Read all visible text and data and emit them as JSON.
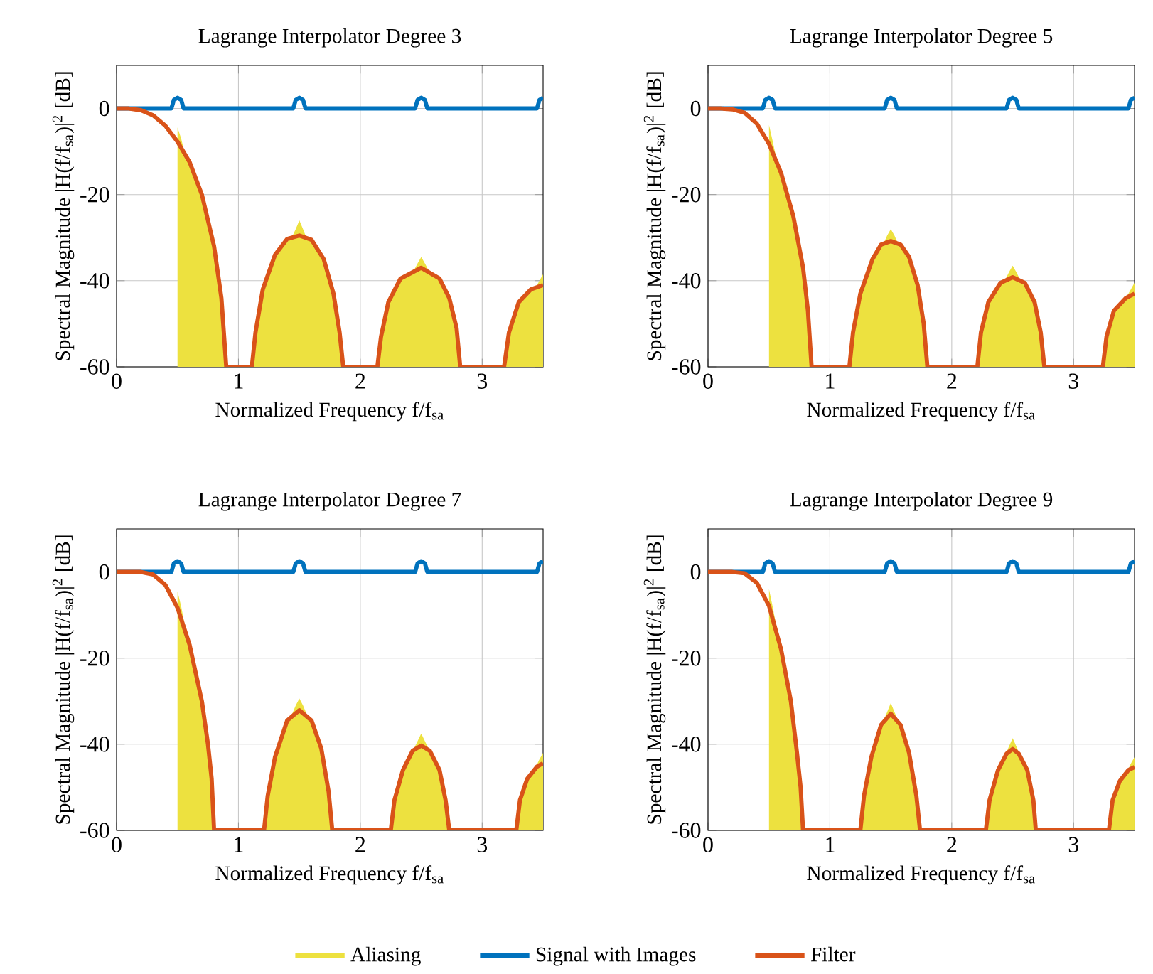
{
  "chart_data": [
    {
      "type": "line",
      "title": "Lagrange Interpolator Degree 3",
      "xlabel": "Normalized Frequency f/f$_{sa}$",
      "ylabel": "Spectral Magnitude |H(f/f$_{sa}$)|$^{2}$ [dB]",
      "xlim": [
        0,
        3.5
      ],
      "ylim": [
        -60,
        10
      ],
      "xticks": [
        0,
        1,
        2,
        3
      ],
      "yticks": [
        -60,
        -40,
        -20,
        0
      ],
      "grid": true,
      "series": [
        {
          "type": "area",
          "color": "#ede13f",
          "x": [
            0.5,
            0.5,
            0.53,
            0.56,
            0.6,
            0.7,
            0.8,
            0.86,
            0.9,
            1.11,
            1.14,
            1.2,
            1.3,
            1.44,
            1.47,
            1.5,
            1.53,
            1.56,
            1.6,
            1.7,
            1.78,
            1.83,
            1.86,
            2.14,
            2.17,
            2.23,
            2.33,
            2.44,
            2.47,
            2.5,
            2.53,
            2.56,
            2.65,
            2.73,
            2.79,
            2.82,
            3.18,
            3.22,
            3.3,
            3.4,
            3.44,
            3.47,
            3.5,
            3.5
          ],
          "values": [
            -60,
            -4.4,
            -7,
            -10.5,
            -12.5,
            -20,
            -32,
            -44,
            -60,
            -60,
            -52,
            -42,
            -34,
            -29.8,
            -28,
            -26,
            -28,
            -30.2,
            -30.5,
            -35,
            -43,
            -52,
            -60,
            -60,
            -53,
            -45,
            -39.5,
            -37.6,
            -36,
            -34.5,
            -36,
            -37.6,
            -39.5,
            -44,
            -51,
            -60,
            -60,
            -52,
            -45,
            -42,
            -41.6,
            -40,
            -38.5,
            -60
          ]
        },
        {
          "color": "#0072bd",
          "x": [
            0,
            0.45,
            0.47,
            0.5,
            0.53,
            0.55,
            1.45,
            1.47,
            1.5,
            1.53,
            1.55,
            2.45,
            2.47,
            2.5,
            2.53,
            2.55,
            3.45,
            3.47,
            3.5
          ],
          "values": [
            0,
            0,
            2,
            2.5,
            2,
            0,
            0,
            2,
            2.5,
            2,
            0,
            0,
            2,
            2.5,
            2,
            0,
            0,
            2,
            2.5
          ]
        },
        {
          "color": "#d95319",
          "x": [
            0,
            0.1,
            0.2,
            0.3,
            0.4,
            0.5,
            0.6,
            0.7,
            0.8,
            0.86,
            0.9,
            1.11,
            1.14,
            1.2,
            1.3,
            1.4,
            1.5,
            1.6,
            1.7,
            1.78,
            1.83,
            1.86,
            2.14,
            2.17,
            2.23,
            2.33,
            2.5,
            2.65,
            2.73,
            2.79,
            2.82,
            3.18,
            3.22,
            3.3,
            3.4,
            3.5
          ],
          "values": [
            0,
            0,
            -0.4,
            -1.6,
            -4,
            -7.7,
            -12.5,
            -20,
            -32,
            -44,
            -60,
            -60,
            -52,
            -42,
            -34,
            -30.3,
            -29.5,
            -30.5,
            -35,
            -43,
            -52,
            -60,
            -60,
            -53,
            -45,
            -39.5,
            -37,
            -39.5,
            -44,
            -51,
            -60,
            -60,
            -52,
            -45,
            -42,
            -41
          ]
        }
      ]
    },
    {
      "type": "line",
      "title": "Lagrange Interpolator Degree 5",
      "xlabel": "Normalized Frequency f/f$_{sa}$",
      "ylabel": "Spectral Magnitude |H(f/f$_{sa}$)|$^{2}$ [dB]",
      "xlim": [
        0,
        3.5
      ],
      "ylim": [
        -60,
        10
      ],
      "xticks": [
        0,
        1,
        2,
        3
      ],
      "yticks": [
        -60,
        -40,
        -20,
        0
      ],
      "grid": true,
      "series": [
        {
          "type": "area",
          "color": "#ede13f",
          "x": [
            0.5,
            0.5,
            0.53,
            0.56,
            0.6,
            0.7,
            0.78,
            0.82,
            0.85,
            1.16,
            1.19,
            1.25,
            1.35,
            1.44,
            1.47,
            1.5,
            1.53,
            1.56,
            1.65,
            1.72,
            1.77,
            1.8,
            2.21,
            2.24,
            2.3,
            2.4,
            2.44,
            2.47,
            2.5,
            2.53,
            2.56,
            2.68,
            2.73,
            2.76,
            3.24,
            3.27,
            3.33,
            3.43,
            3.47,
            3.5,
            3.5
          ],
          "values": [
            -60,
            -3.8,
            -7.5,
            -11.5,
            -15,
            -25,
            -37,
            -47,
            -60,
            -60,
            -52,
            -43,
            -35,
            -31.4,
            -29.5,
            -28,
            -29.5,
            -31.4,
            -34.5,
            -41,
            -50,
            -60,
            -60,
            -52,
            -45,
            -40.5,
            -39.7,
            -38,
            -36.5,
            -38,
            -39.7,
            -45,
            -52,
            -60,
            -60,
            -53,
            -47,
            -44,
            -42,
            -40.5,
            -60
          ]
        },
        {
          "color": "#0072bd",
          "x": [
            0,
            0.45,
            0.47,
            0.5,
            0.53,
            0.55,
            1.45,
            1.47,
            1.5,
            1.53,
            1.55,
            2.45,
            2.47,
            2.5,
            2.53,
            2.55,
            3.45,
            3.47,
            3.5
          ],
          "values": [
            0,
            0,
            2,
            2.5,
            2,
            0,
            0,
            2,
            2.5,
            2,
            0,
            0,
            2,
            2.5,
            2,
            0,
            0,
            2,
            2.5
          ]
        },
        {
          "color": "#d95319",
          "x": [
            0,
            0.1,
            0.2,
            0.3,
            0.4,
            0.5,
            0.6,
            0.7,
            0.78,
            0.82,
            0.85,
            1.16,
            1.19,
            1.25,
            1.35,
            1.42,
            1.5,
            1.58,
            1.65,
            1.72,
            1.77,
            1.8,
            2.21,
            2.24,
            2.3,
            2.4,
            2.5,
            2.6,
            2.68,
            2.73,
            2.76,
            3.24,
            3.27,
            3.33,
            3.43,
            3.5
          ],
          "values": [
            0,
            0,
            -0.2,
            -1,
            -3.5,
            -8.2,
            -15,
            -25,
            -37,
            -47,
            -60,
            -60,
            -52,
            -43,
            -35,
            -31.6,
            -30.8,
            -31.6,
            -34.5,
            -41,
            -50,
            -60,
            -60,
            -52,
            -45,
            -40.5,
            -39.2,
            -40.5,
            -45,
            -52,
            -60,
            -60,
            -53,
            -47,
            -44,
            -43
          ]
        }
      ]
    },
    {
      "type": "line",
      "title": "Lagrange Interpolator Degree 7",
      "xlabel": "Normalized Frequency f/f$_{sa}$",
      "ylabel": "Spectral Magnitude |H(f/f$_{sa}$)|$^{2}$ [dB]",
      "xlim": [
        0,
        3.5
      ],
      "ylim": [
        -60,
        10
      ],
      "xticks": [
        0,
        1,
        2,
        3
      ],
      "yticks": [
        -60,
        -40,
        -20,
        0
      ],
      "grid": true,
      "series": [
        {
          "type": "area",
          "color": "#ede13f",
          "x": [
            0.5,
            0.5,
            0.53,
            0.56,
            0.6,
            0.7,
            0.75,
            0.78,
            0.8,
            1.21,
            1.24,
            1.3,
            1.4,
            1.44,
            1.47,
            1.5,
            1.53,
            1.56,
            1.6,
            1.68,
            1.74,
            1.77,
            2.25,
            2.28,
            2.35,
            2.44,
            2.47,
            2.5,
            2.53,
            2.56,
            2.65,
            2.7,
            2.73,
            3.28,
            3.31,
            3.37,
            3.44,
            3.47,
            3.5,
            3.5
          ],
          "values": [
            -60,
            -4.5,
            -8,
            -12.5,
            -17,
            -30,
            -40,
            -48,
            -60,
            -60,
            -52,
            -43,
            -34.5,
            -33,
            -31,
            -29.4,
            -31,
            -33,
            -34.5,
            -41,
            -51,
            -60,
            -60,
            -53,
            -46,
            -41,
            -39.3,
            -37.5,
            -39.3,
            -41,
            -46,
            -53,
            -60,
            -60,
            -53,
            -48,
            -45.3,
            -43.5,
            -42,
            -60
          ]
        },
        {
          "color": "#0072bd",
          "x": [
            0,
            0.45,
            0.47,
            0.5,
            0.53,
            0.55,
            1.45,
            1.47,
            1.5,
            1.53,
            1.55,
            2.45,
            2.47,
            2.5,
            2.53,
            2.55,
            3.45,
            3.47,
            3.5
          ],
          "values": [
            0,
            0,
            2,
            2.5,
            2,
            0,
            0,
            2,
            2.5,
            2,
            0,
            0,
            2,
            2.5,
            2,
            0,
            0,
            2,
            2.5
          ]
        },
        {
          "color": "#d95319",
          "x": [
            0,
            0.1,
            0.2,
            0.3,
            0.4,
            0.5,
            0.6,
            0.7,
            0.75,
            0.78,
            0.8,
            1.21,
            1.24,
            1.3,
            1.4,
            1.5,
            1.6,
            1.68,
            1.74,
            1.77,
            2.25,
            2.28,
            2.35,
            2.43,
            2.5,
            2.57,
            2.65,
            2.7,
            2.73,
            3.28,
            3.31,
            3.37,
            3.45,
            3.5
          ],
          "values": [
            0,
            0,
            0,
            -0.6,
            -3,
            -8.3,
            -17,
            -30,
            -40,
            -48,
            -60,
            -60,
            -52,
            -43,
            -34.5,
            -32.1,
            -34.5,
            -41,
            -51,
            -60,
            -60,
            -53,
            -46,
            -41.5,
            -40.3,
            -41.5,
            -46,
            -53,
            -60,
            -60,
            -53,
            -48,
            -45.2,
            -44.4
          ]
        }
      ]
    },
    {
      "type": "line",
      "title": "Lagrange Interpolator Degree 9",
      "xlabel": "Normalized Frequency f/f$_{sa}$",
      "ylabel": "Spectral Magnitude |H(f/f$_{sa}$)|$^{2}$ [dB]",
      "xlim": [
        0,
        3.5
      ],
      "ylim": [
        -60,
        10
      ],
      "xticks": [
        0,
        1,
        2,
        3
      ],
      "yticks": [
        -60,
        -40,
        -20,
        0
      ],
      "grid": true,
      "legend": "bottom",
      "series": [
        {
          "name": "Aliasing",
          "type": "area",
          "color": "#ede13f",
          "x": [
            0.5,
            0.5,
            0.53,
            0.56,
            0.6,
            0.68,
            0.73,
            0.76,
            0.78,
            1.25,
            1.28,
            1.34,
            1.42,
            1.44,
            1.47,
            1.5,
            1.53,
            1.56,
            1.58,
            1.65,
            1.71,
            1.74,
            2.28,
            2.31,
            2.38,
            2.44,
            2.47,
            2.5,
            2.53,
            2.56,
            2.62,
            2.67,
            2.69,
            3.29,
            3.32,
            3.38,
            3.44,
            3.47,
            3.5,
            3.5
          ],
          "values": [
            -60,
            -3.9,
            -8,
            -12.5,
            -18,
            -30,
            -42,
            -50,
            -60,
            -60,
            -52,
            -43,
            -35.5,
            -34.5,
            -32.5,
            -30.4,
            -32.5,
            -34.5,
            -35.5,
            -42,
            -52,
            -60,
            -60,
            -53,
            -46,
            -42.5,
            -40.5,
            -38.6,
            -40.5,
            -42.5,
            -46,
            -53,
            -60,
            -60,
            -53,
            -48.5,
            -46.3,
            -44.5,
            -43,
            -60
          ]
        },
        {
          "name": "Signal with Images",
          "color": "#0072bd",
          "x": [
            0,
            0.45,
            0.47,
            0.5,
            0.53,
            0.55,
            1.45,
            1.47,
            1.5,
            1.53,
            1.55,
            2.45,
            2.47,
            2.5,
            2.53,
            2.55,
            3.45,
            3.47,
            3.5
          ],
          "values": [
            0,
            0,
            2,
            2.5,
            2,
            0,
            0,
            2,
            2.5,
            2,
            0,
            0,
            2,
            2.5,
            2,
            0,
            0,
            2,
            2.5
          ]
        },
        {
          "name": "Filter",
          "color": "#d95319",
          "x": [
            0,
            0.1,
            0.2,
            0.3,
            0.4,
            0.5,
            0.6,
            0.68,
            0.73,
            0.76,
            0.78,
            1.25,
            1.28,
            1.34,
            1.42,
            1.5,
            1.58,
            1.65,
            1.71,
            1.74,
            2.28,
            2.31,
            2.38,
            2.45,
            2.5,
            2.55,
            2.62,
            2.67,
            2.69,
            3.29,
            3.32,
            3.38,
            3.45,
            3.5
          ],
          "values": [
            0,
            0,
            0,
            -0.3,
            -2.5,
            -7.8,
            -18,
            -30,
            -42,
            -50,
            -60,
            -60,
            -52,
            -43,
            -35.5,
            -32.9,
            -35.5,
            -42,
            -52,
            -60,
            -60,
            -53,
            -46,
            -42.2,
            -41.1,
            -42.2,
            -46,
            -53,
            -60,
            -60,
            -53,
            -48.5,
            -46,
            -45.3
          ]
        }
      ]
    }
  ]
}
